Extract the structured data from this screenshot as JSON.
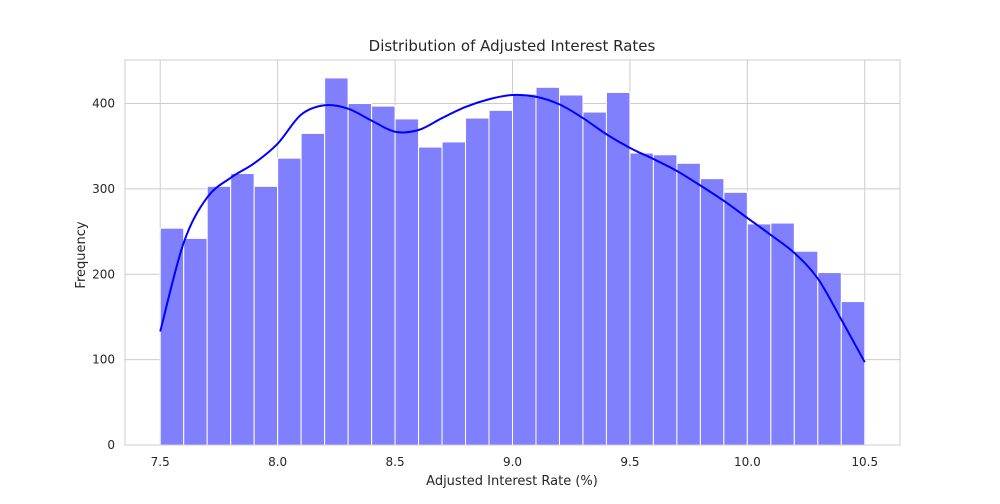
{
  "chart_data": {
    "type": "bar",
    "title": "Distribution of Adjusted Interest Rates",
    "xlabel": "Adjusted Interest Rate (%)",
    "ylabel": "Frequency",
    "xlim": [
      7.35,
      10.65
    ],
    "ylim": [
      0,
      451
    ],
    "grid": true,
    "legend": "none",
    "x_ticks": [
      7.5,
      8.0,
      8.5,
      9.0,
      9.5,
      10.0,
      10.5
    ],
    "x_tick_labels": [
      "7.5",
      "8.0",
      "8.5",
      "9.0",
      "9.5",
      "10.0",
      "10.5"
    ],
    "y_ticks": [
      0,
      100,
      200,
      300,
      400
    ],
    "y_tick_labels": [
      "0",
      "100",
      "200",
      "300",
      "400"
    ],
    "bin_edges": [
      7.5,
      7.6,
      7.7,
      7.8,
      7.9,
      8.0,
      8.1,
      8.2,
      8.3,
      8.4,
      8.5,
      8.6,
      8.7,
      8.8,
      8.9,
      9.0,
      9.1,
      9.2,
      9.3,
      9.4,
      9.5,
      9.6,
      9.7,
      9.8,
      9.9,
      10.0,
      10.1,
      10.2,
      10.3,
      10.4,
      10.5
    ],
    "values": [
      254,
      242,
      303,
      318,
      303,
      336,
      365,
      430,
      400,
      397,
      382,
      349,
      355,
      383,
      392,
      411,
      419,
      410,
      390,
      413,
      342,
      340,
      330,
      312,
      296,
      259,
      260,
      227,
      202,
      168
    ],
    "series": [
      {
        "type": "line",
        "x": [
          7.5,
          7.6,
          7.7,
          7.8,
          7.9,
          8.0,
          8.1,
          8.2,
          8.3,
          8.4,
          8.5,
          8.6,
          8.7,
          8.8,
          8.9,
          9.0,
          9.1,
          9.2,
          9.3,
          9.4,
          9.5,
          9.6,
          9.7,
          9.8,
          9.9,
          10.0,
          10.1,
          10.2,
          10.3,
          10.4,
          10.5
        ],
        "values": [
          133,
          237,
          290,
          313,
          330,
          353,
          387,
          398,
          394,
          380,
          367,
          369,
          383,
          396,
          405,
          410,
          408,
          399,
          383,
          364,
          348,
          335,
          321,
          304,
          286,
          266,
          246,
          225,
          195,
          147,
          97
        ]
      }
    ],
    "colors": {
      "bars": "#8080ff",
      "bar_edge": "#ffffff",
      "kde": "#0000ff",
      "grid": "#cccccc",
      "spine": "#cccccc",
      "text": "#262626",
      "background": "#ffffff"
    }
  }
}
